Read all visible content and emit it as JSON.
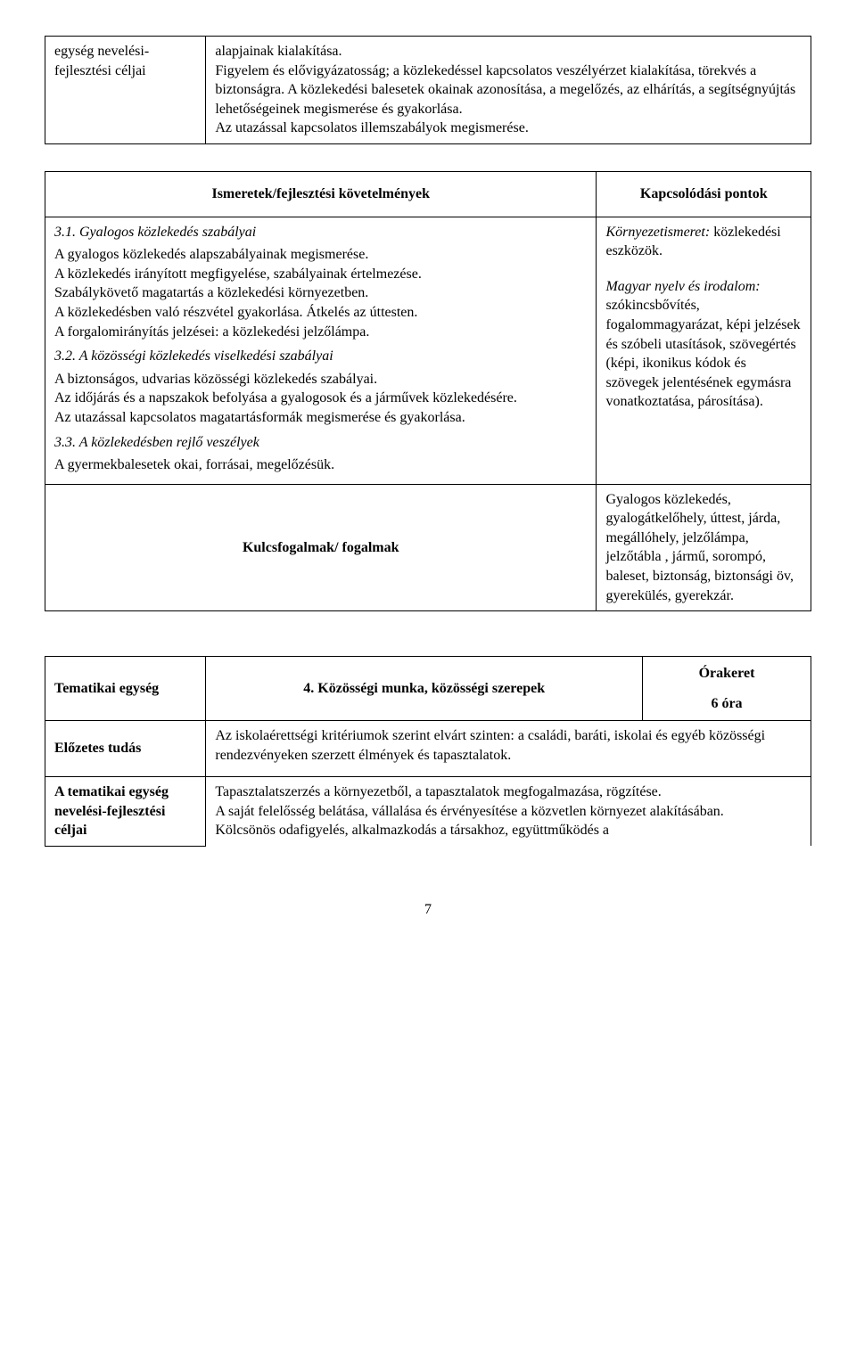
{
  "table1": {
    "left_label": "egység nevelési-fejlesztési céljai",
    "right_text": "alapjainak kialakítása.\nFigyelem és elővigyázatosság; a közlekedéssel kapcsolatos veszélyérzet kialakítása, törekvés a biztonságra. A közlekedési balesetek okainak azonosítása, a megelőzés, az elhárítás, a segítségnyújtás lehetőségeinek megismerése és gyakorlása.\nAz utazással kapcsolatos illemszabályok megismerése."
  },
  "table2": {
    "header_left": "Ismeretek/fejlesztési követelmények",
    "header_right": "Kapcsolódási pontok",
    "block1_title": "3.1. Gyalogos közlekedés szabályai",
    "block1_text": "A gyalogos közlekedés alapszabályainak megismerése.\nA közlekedés irányított megfigyelése, szabályainak értelmezése.\nSzabálykövető magatartás a közlekedési környezetben.\nA közlekedésben való részvétel gyakorlása. Átkelés az úttesten.\nA forgalomirányítás jelzései: a közlekedési jelzőlámpa.",
    "block2_title": "3.2. A közösségi közlekedés viselkedési szabályai",
    "block2_text": "A biztonságos, udvarias közösségi közlekedés szabályai.\nAz időjárás és a napszakok befolyása a gyalogosok és a járművek közlekedésére.\nAz utazással kapcsolatos magatartásformák megismerése és gyakorlása.",
    "block3_title": "3.3. A közlekedésben rejlő veszélyek",
    "block3_text": "A gyermekbalesetek okai, forrásai, megelőzésük.",
    "right_a_title": "Környezetismeret:",
    "right_a_text": "közlekedési eszközök.",
    "right_b_title": "Magyar nyelv és irodalom:",
    "right_b_text": "szókincsbővítés, fogalommagyarázat, képi jelzések és szóbeli utasítások, szövegértés (képi, ikonikus kódok és szövegek jelentésének egymásra vonatkoztatása, párosítása).",
    "kulcs_label": "Kulcsfogalmak/ fogalmak",
    "kulcs_text": "Gyalogos közlekedés, gyalogátkelőhely, úttest, járda, megállóhely, jelzőlámpa, jelzőtábla , jármű, sorompó, baleset, biztonság, biztonsági öv, gyerekülés, gyerekzár."
  },
  "table3": {
    "r1_left": "Tematikai egység",
    "r1_mid": "4. Közösségi munka, közösségi szerepek",
    "r1_right_a": "Órakeret",
    "r1_right_b": "6 óra",
    "r2_left": "Előzetes tudás",
    "r2_right": "Az iskolaérettségi kritériumok szerint elvárt szinten: a családi, baráti, iskolai és egyéb közösségi rendezvényeken szerzett élmények és tapasztalatok.",
    "r3_left": "A tematikai egység nevelési-fejlesztési céljai",
    "r3_right": "Tapasztalatszerzés a környezetből, a tapasztalatok megfogalmazása, rögzítése.\nA saját felelősség belátása, vállalása és érvényesítése a közvetlen környezet alakításában.\nKölcsönös odafigyelés, alkalmazkodás a társakhoz, együttműködés a"
  },
  "page_number": "7"
}
